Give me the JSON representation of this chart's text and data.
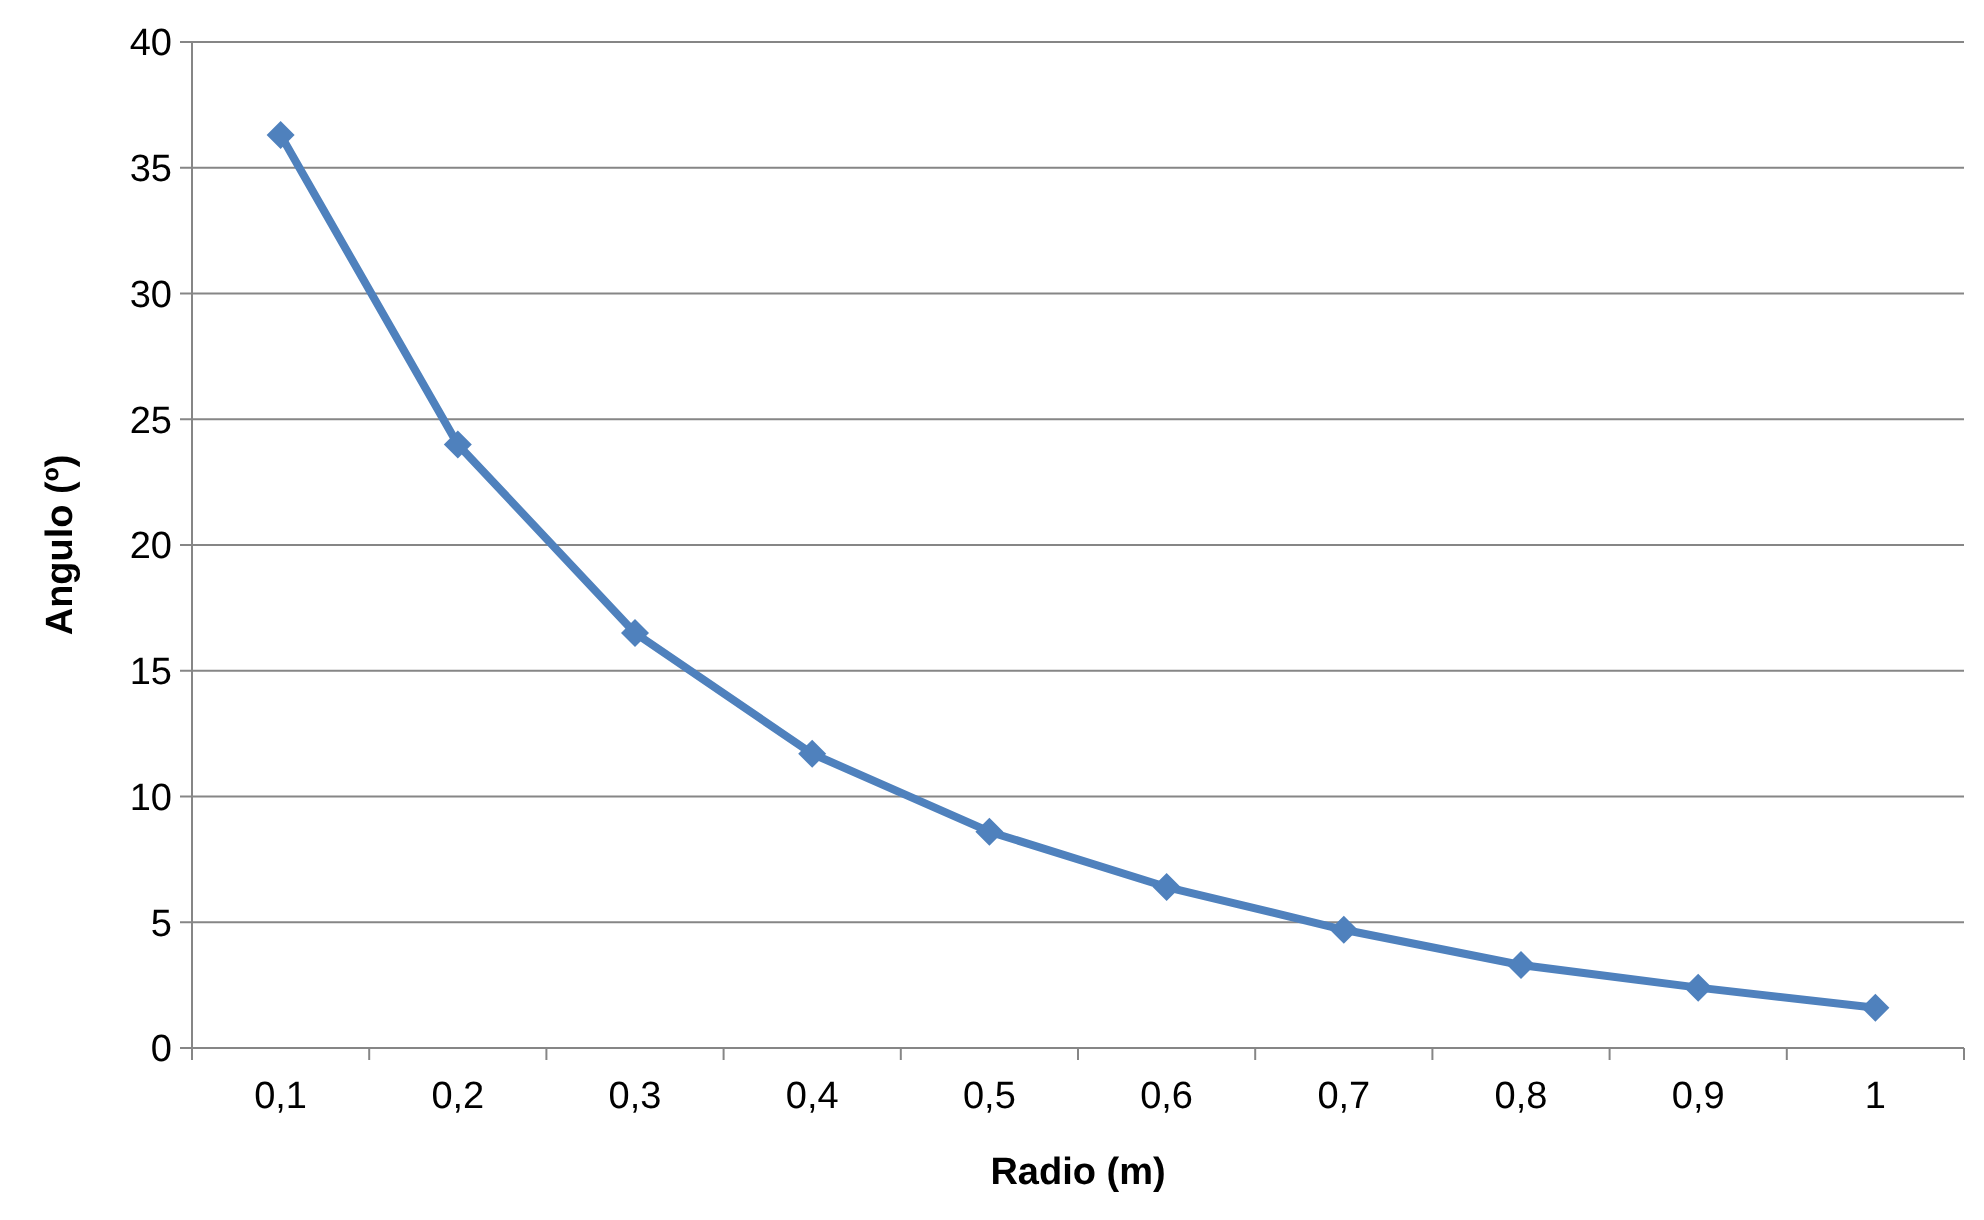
{
  "chart_data": {
    "type": "line",
    "xlabel": "Radio (m)",
    "ylabel": "Angulo (º)",
    "categories": [
      "0,1",
      "0,2",
      "0,3",
      "0,4",
      "0,5",
      "0,6",
      "0,7",
      "0,8",
      "0,9",
      "1"
    ],
    "series": [
      {
        "color": "#4f81bd",
        "values": [
          36.3,
          24.0,
          16.5,
          11.7,
          8.6,
          6.4,
          4.7,
          3.3,
          2.4,
          1.6
        ]
      }
    ],
    "ylim": [
      0,
      40
    ],
    "yticks": [
      0,
      5,
      10,
      15,
      20,
      25,
      30,
      35,
      40
    ],
    "grid": "y",
    "marker": "diamond",
    "line_style": "solid"
  }
}
